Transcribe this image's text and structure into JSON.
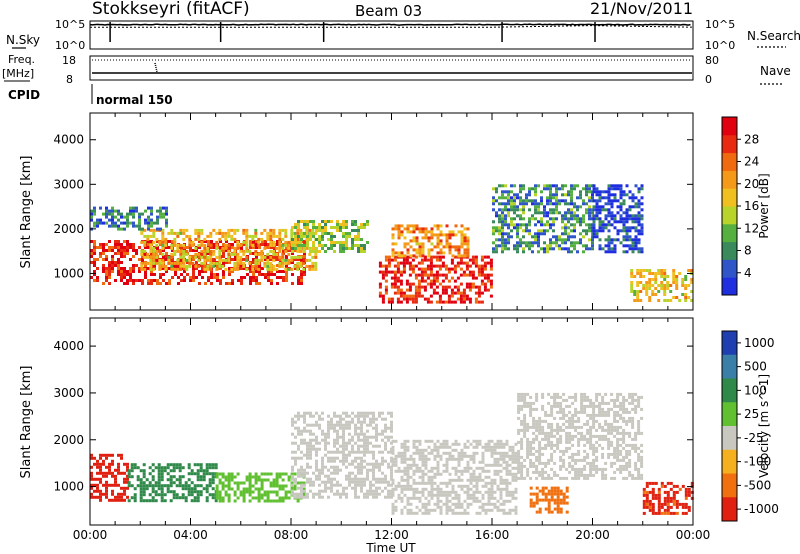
{
  "header": {
    "station": "Stokkseyri (fitACF)",
    "beam": "Beam 03",
    "date": "21/Nov/2011"
  },
  "side_labels": {
    "nsky": "N.Sky",
    "freq": "Freq.",
    "freq_unit": "[MHz]",
    "cpid": "CPID",
    "nsearch": "N.Search",
    "nave": "Nave"
  },
  "cpid_value": "normal 150",
  "small_axes": {
    "nsky_ticks": [
      "10^5",
      "10^0"
    ],
    "nsearch_ticks": [
      "10^5",
      "10^0"
    ],
    "freq_ticks": [
      "18",
      "8"
    ],
    "nave_ticks": [
      "80",
      "0"
    ]
  },
  "time_axis": {
    "label": "Time UT",
    "ticks": [
      "00:00",
      "04:00",
      "08:00",
      "12:00",
      "16:00",
      "20:00",
      "00:00"
    ]
  },
  "range_axis": {
    "label": "Slant Range [km]",
    "ticks": [
      "1000",
      "2000",
      "3000",
      "4000"
    ]
  },
  "power_scale": {
    "label": "Power [dB]",
    "ticks": [
      "4",
      "8",
      "12",
      "16",
      "20",
      "24",
      "28"
    ],
    "colors": [
      "#1f2fe0",
      "#2f55c8",
      "#3a8a5c",
      "#55b040",
      "#b8d42a",
      "#f0c020",
      "#f59a18",
      "#f06a10",
      "#e82a10",
      "#e00010"
    ]
  },
  "velocity_scale": {
    "label": "Velocity [m s^-1]",
    "ticks": [
      "1000",
      "500",
      "100",
      "25",
      "-25",
      "-100",
      "-500",
      "-1000"
    ],
    "colors": [
      "#1f3fb0",
      "#3a7fa8",
      "#2f8a4a",
      "#60c030",
      "#c8c8c0",
      "#f5b020",
      "#f07010",
      "#e02010"
    ]
  },
  "chart_data": [
    {
      "type": "line",
      "title": "N.Sky / N.Search",
      "x_range_hours": [
        0,
        24
      ],
      "series": [
        {
          "name": "N.Sky",
          "x": [
            0,
            2,
            4,
            6,
            8,
            10,
            12,
            14,
            16,
            18,
            20,
            22,
            24
          ],
          "y": [
            30000,
            32000,
            31000,
            33000,
            32000,
            31000,
            30000,
            32000,
            34000,
            33000,
            31000,
            30000,
            28000
          ]
        },
        {
          "name": "N.Search",
          "x": [
            0,
            4,
            8,
            12,
            16,
            20,
            24
          ],
          "y": [
            10000,
            10000,
            10000,
            10000,
            10000,
            20000,
            10000
          ]
        }
      ],
      "ylim": [
        1,
        100000
      ],
      "yscale": "log"
    },
    {
      "type": "line",
      "title": "Freq. / Nave",
      "x_range_hours": [
        0,
        24
      ],
      "series": [
        {
          "name": "Freq. [MHz]",
          "x": [
            0,
            24
          ],
          "y": [
            10.5,
            10.5
          ]
        },
        {
          "name": "Nave",
          "x": [
            0,
            24
          ],
          "y": [
            70,
            70
          ]
        }
      ],
      "ylim_freq": [
        8,
        18
      ],
      "ylim_nave": [
        0,
        80
      ]
    },
    {
      "type": "heatmap",
      "title": "Power [dB]",
      "xlabel": "Time UT",
      "ylabel": "Slant Range [km]",
      "x_range_hours": [
        0,
        24
      ],
      "ylim": [
        180,
        4600
      ],
      "color_range": [
        3,
        30
      ],
      "features": [
        {
          "x": [
            0,
            8.5
          ],
          "y": [
            750,
            1750
          ],
          "level": 27
        },
        {
          "x": [
            2,
            9
          ],
          "y": [
            1100,
            2000
          ],
          "level": 18
        },
        {
          "x": [
            0,
            3
          ],
          "y": [
            2000,
            2500
          ],
          "level": 9
        },
        {
          "x": [
            8,
            11
          ],
          "y": [
            1500,
            2200
          ],
          "level": 14
        },
        {
          "x": [
            11.5,
            16
          ],
          "y": [
            350,
            1400
          ],
          "level": 27
        },
        {
          "x": [
            12,
            15
          ],
          "y": [
            1400,
            2100
          ],
          "level": 21
        },
        {
          "x": [
            16,
            20
          ],
          "y": [
            1500,
            3000
          ],
          "level": 10
        },
        {
          "x": [
            20,
            22
          ],
          "y": [
            1500,
            3000
          ],
          "level": 6
        },
        {
          "x": [
            21.5,
            24
          ],
          "y": [
            400,
            1100
          ],
          "level": 18
        }
      ]
    },
    {
      "type": "heatmap",
      "title": "Velocity [m s^-1]",
      "xlabel": "Time UT",
      "ylabel": "Slant Range [km]",
      "x_range_hours": [
        0,
        24
      ],
      "ylim": [
        180,
        4600
      ],
      "color_levels": [
        1000,
        500,
        100,
        25,
        -25,
        -100,
        -500,
        -1000
      ],
      "features": [
        {
          "x": [
            0,
            1.5
          ],
          "y": [
            700,
            1700
          ],
          "value": -700
        },
        {
          "x": [
            1.5,
            5
          ],
          "y": [
            700,
            1500
          ],
          "value": 300
        },
        {
          "x": [
            5,
            8.5
          ],
          "y": [
            700,
            1300
          ],
          "value": 60
        },
        {
          "x": [
            8,
            12
          ],
          "y": [
            800,
            2600
          ],
          "value": 0
        },
        {
          "x": [
            12,
            17
          ],
          "y": [
            400,
            2000
          ],
          "value": 0
        },
        {
          "x": [
            17,
            22
          ],
          "y": [
            1200,
            3000
          ],
          "value": 0
        },
        {
          "x": [
            17.5,
            19
          ],
          "y": [
            450,
            1000
          ],
          "value": -400
        },
        {
          "x": [
            22,
            24
          ],
          "y": [
            400,
            1100
          ],
          "value": -600
        }
      ]
    }
  ]
}
